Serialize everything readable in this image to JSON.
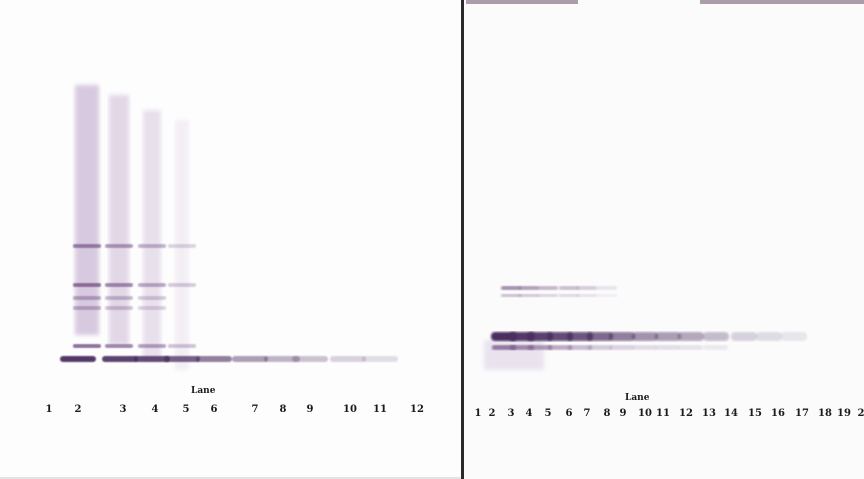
{
  "left_blot": {
    "lane_caption": "Lane",
    "lanes": [
      "1",
      "2",
      "3",
      "4",
      "5",
      "6",
      "7",
      "8",
      "9",
      "10",
      "11",
      "12"
    ]
  },
  "right_blot": {
    "lane_caption": "Lane",
    "lanes": [
      "1",
      "2",
      "3",
      "4",
      "5",
      "6",
      "7",
      "8",
      "9",
      "10",
      "11",
      "12",
      "13",
      "14",
      "15",
      "16",
      "17",
      "18",
      "19",
      "2"
    ]
  },
  "colors": {
    "band_dark": "#4a2d5e",
    "band_mid": "#7a5a8c",
    "smear": "#b9a0c8",
    "divider": "#2a2a2a"
  }
}
